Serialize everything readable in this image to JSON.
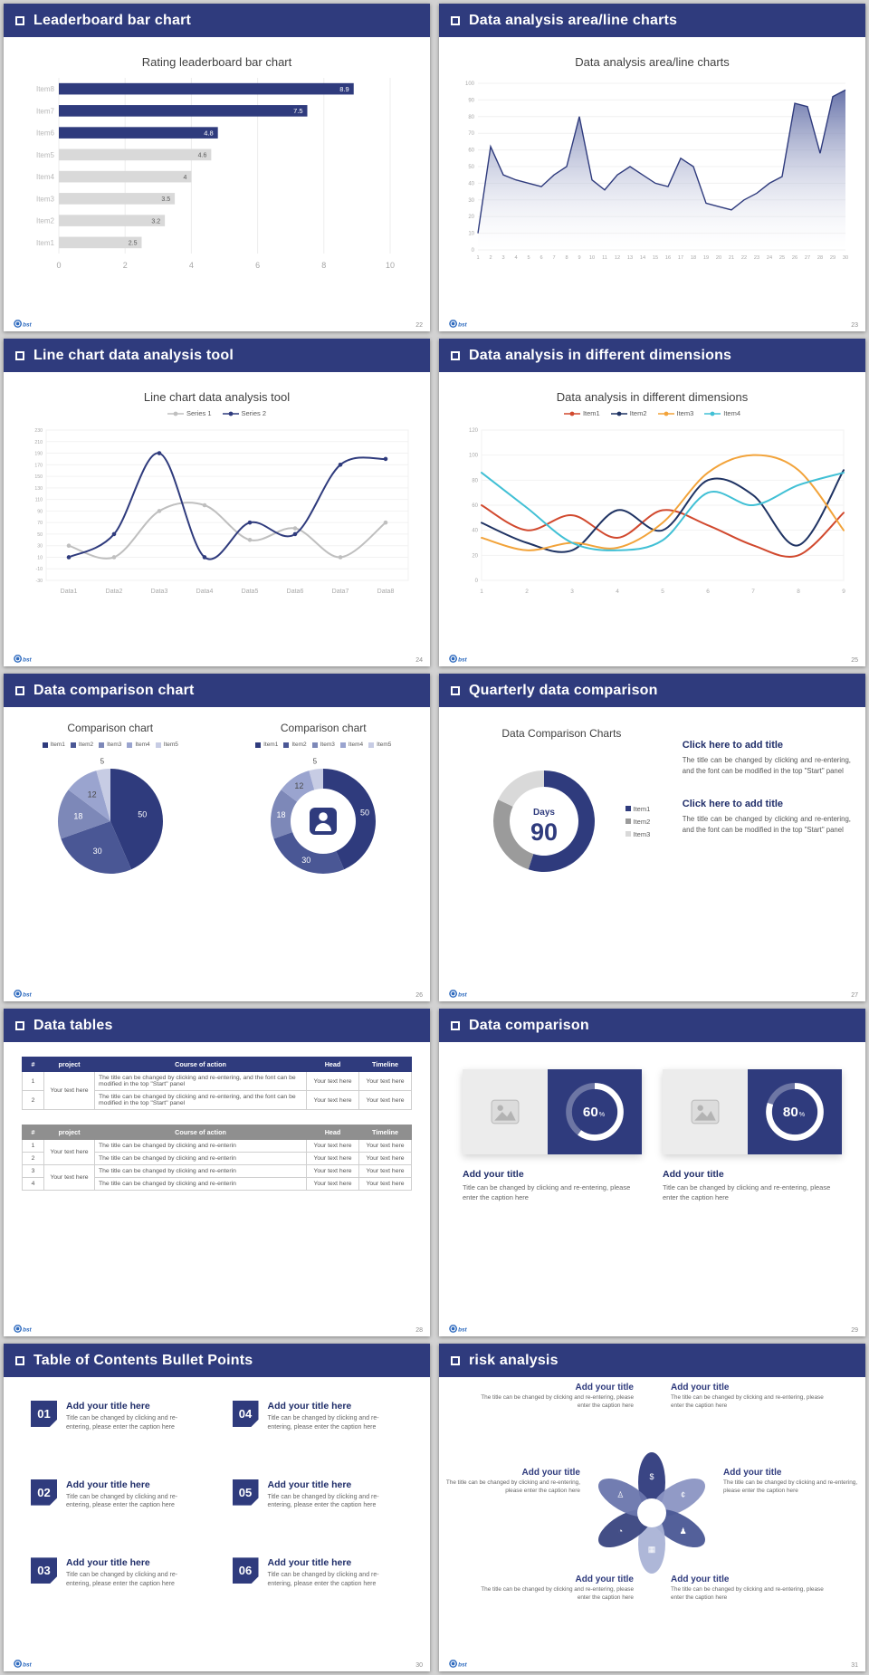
{
  "theme": {
    "page_bg": "#d2d2d2",
    "header_bg": "#2f3b7d",
    "header_text": "#ffffff",
    "navy": "#2f3b7d",
    "gray_bar": "#d9d9d9",
    "logo_text": "bst"
  },
  "slides": [
    {
      "header": "Leaderboard bar chart",
      "page": "22",
      "title": "Rating leaderboard bar chart"
    },
    {
      "header": "Data analysis area/line charts",
      "page": "23",
      "title": "Data analysis area/line charts"
    },
    {
      "header": "Line chart data analysis tool",
      "page": "24",
      "title": "Line chart data analysis tool"
    },
    {
      "header": "Data analysis in different dimensions",
      "page": "25",
      "title": "Data analysis in different dimensions"
    },
    {
      "header": "Data comparison chart",
      "page": "26",
      "titles": [
        "Comparison chart",
        "Comparison chart"
      ]
    },
    {
      "header": "Quarterly data comparison",
      "page": "27",
      "title": "Data Comparison Charts",
      "blocks": [
        {
          "title": "Click here to add title",
          "body": "The title can be changed by clicking and re-entering, and the font can be modified in the top \"Start\" panel"
        },
        {
          "title": "Click here to add title",
          "body": "The title can be changed by clicking and re-entering, and the font can be modified in the top \"Start\" panel"
        }
      ]
    },
    {
      "header": "Data tables",
      "page": "28",
      "tables": [
        {
          "style": "navy",
          "columns": [
            "#",
            "project",
            "Course of action",
            "Head",
            "Timeline"
          ],
          "groups": [
            {
              "project": "Your text here",
              "rows": [
                {
                  "num": "1",
                  "course": "The title can be changed by clicking and re-entering, and the font can be modified in the top \"Start\" panel",
                  "head": "Your text here",
                  "timeline": "Your text here"
                },
                {
                  "num": "2",
                  "course": "The title can be changed by clicking and re-entering, and the font can be modified in the top \"Start\" panel",
                  "head": "Your text here",
                  "timeline": "Your text here"
                }
              ]
            }
          ]
        },
        {
          "style": "gray",
          "columns": [
            "#",
            "project",
            "Course of action",
            "Head",
            "Timeline"
          ],
          "groups": [
            {
              "project": "Your text here",
              "rows": [
                {
                  "num": "1",
                  "course": "The title can be changed by clicking and re-enterin",
                  "head": "Your text here",
                  "timeline": "Your text here"
                },
                {
                  "num": "2",
                  "course": "The title can be changed by clicking and re-enterin",
                  "head": "Your text here",
                  "timeline": "Your text here"
                }
              ]
            },
            {
              "project": "Your text here",
              "rows": [
                {
                  "num": "3",
                  "course": "The title can be changed by clicking and re-enterin",
                  "head": "Your text here",
                  "timeline": "Your text here"
                },
                {
                  "num": "4",
                  "course": "The title can be changed by clicking and re-enterin",
                  "head": "Your text here",
                  "timeline": "Your text here"
                }
              ]
            }
          ]
        }
      ]
    },
    {
      "header": "Data comparison",
      "page": "29",
      "cards": [
        {
          "percent": 60,
          "title": "Add your title",
          "caption": "Title can be changed by clicking and re-entering, please enter the caption here"
        },
        {
          "percent": 80,
          "title": "Add your title",
          "caption": "Title can be changed by clicking and re-entering, please enter the caption here"
        }
      ]
    },
    {
      "header": "Table of Contents Bullet Points",
      "page": "30",
      "items": [
        {
          "num": "01",
          "title": "Add your title here",
          "caption": "Title can be changed by clicking and re-entering, please enter the caption here"
        },
        {
          "num": "02",
          "title": "Add your title here",
          "caption": "Title can be changed by clicking and re-entering, please enter the caption here"
        },
        {
          "num": "03",
          "title": "Add your title here",
          "caption": "Title can be changed by clicking and re-entering, please enter the caption here"
        },
        {
          "num": "04",
          "title": "Add your title here",
          "caption": "Title can be changed by clicking and re-entering, please enter the caption here"
        },
        {
          "num": "05",
          "title": "Add your title here",
          "caption": "Title can be changed by clicking and re-entering, please enter the caption here"
        },
        {
          "num": "06",
          "title": "Add your title here",
          "caption": "Title can be changed by clicking and re-entering, please enter the caption here"
        }
      ]
    },
    {
      "header": "risk analysis",
      "page": "31",
      "items": [
        {
          "title": "Add your title",
          "caption": "The title can be changed by clicking and re-entering, please enter the caption here"
        },
        {
          "title": "Add your title",
          "caption": "The title can be changed by clicking and re-entering, please enter the caption here"
        },
        {
          "title": "Add your title",
          "caption": "The title can be changed by clicking and re-entering, please enter the caption here"
        },
        {
          "title": "Add your title",
          "caption": "The title can be changed by clicking and re-entering, please enter the caption here"
        },
        {
          "title": "Add your title",
          "caption": "The title can be changed by clicking and re-entering, please enter the caption here"
        },
        {
          "title": "Add your title",
          "caption": "The title can be changed by clicking and re-entering, please enter the caption here"
        }
      ],
      "icons": [
        {
          "name": "money-bag-icon",
          "glyph": "$"
        },
        {
          "name": "coins-icon",
          "glyph": "¢"
        },
        {
          "name": "people-icon",
          "glyph": "♟"
        },
        {
          "name": "building-icon",
          "glyph": "▦"
        },
        {
          "name": "chart-pie-icon",
          "glyph": "◔"
        },
        {
          "name": "user-icon",
          "glyph": "♙"
        }
      ],
      "petal_colors": [
        "#2f3b7d",
        "#8b95c3",
        "#4a5795",
        "#aab3d6",
        "#39447f",
        "#6a76ad"
      ]
    }
  ],
  "chart_data": [
    {
      "type": "bar",
      "orientation": "horizontal",
      "title": "Rating leaderboard bar chart",
      "categories": [
        "Item1",
        "Item2",
        "Item3",
        "Item4",
        "Item5",
        "Item6",
        "Item7",
        "Item8"
      ],
      "values": [
        2.5,
        3.2,
        3.5,
        4,
        4.6,
        4.8,
        7.5,
        8.9
      ],
      "xlim": [
        0,
        10
      ],
      "xticks": [
        0,
        2,
        4,
        6,
        8,
        10
      ],
      "bar_colors": [
        "#d9d9d9",
        "#d9d9d9",
        "#d9d9d9",
        "#d9d9d9",
        "#d9d9d9",
        "#2f3b7d",
        "#2f3b7d",
        "#2f3b7d"
      ],
      "highlight_color": "#2f3b7d"
    },
    {
      "type": "area",
      "title": "Data analysis area/line charts",
      "x": [
        1,
        2,
        3,
        4,
        5,
        6,
        7,
        8,
        9,
        10,
        11,
        12,
        13,
        14,
        15,
        16,
        17,
        18,
        19,
        20,
        21,
        22,
        23,
        24,
        25,
        26,
        27,
        28,
        29,
        30
      ],
      "values": [
        10,
        62,
        45,
        42,
        40,
        38,
        45,
        50,
        80,
        42,
        36,
        45,
        50,
        45,
        40,
        38,
        55,
        50,
        28,
        26,
        24,
        30,
        34,
        40,
        44,
        88,
        86,
        58,
        92,
        96
      ],
      "ylim": [
        0,
        100
      ],
      "ytick_step": 10,
      "line_color": "#2f3b7d",
      "fill_top": "#5f6ba5"
    },
    {
      "type": "line",
      "title": "Line chart data analysis tool",
      "categories": [
        "Data1",
        "Data2",
        "Data3",
        "Data4",
        "Data5",
        "Data6",
        "Data7",
        "Data8"
      ],
      "ylim": [
        -30,
        230
      ],
      "ytick_step": 20,
      "ytick_font": 5.2,
      "xtick_font": 7,
      "markers": true,
      "stroke": 2,
      "height": 196,
      "series": [
        {
          "name": "Series 1",
          "color": "#bfbfbf",
          "values": [
            30,
            10,
            90,
            100,
            40,
            60,
            10,
            70
          ]
        },
        {
          "name": "Series 2",
          "color": "#2f3b7d",
          "values": [
            10,
            50,
            190,
            10,
            70,
            50,
            170,
            180
          ]
        }
      ]
    },
    {
      "type": "line",
      "title": "Data analysis in different dimensions",
      "x": [
        1,
        2,
        3,
        4,
        5,
        6,
        7,
        8,
        9
      ],
      "ylim": [
        0,
        120
      ],
      "ytick_step": 20,
      "ytick_font": 6,
      "xtick_font": 6.5,
      "markers": false,
      "stroke": 2,
      "height": 196,
      "series": [
        {
          "name": "Item1",
          "color": "#d1492e",
          "values": [
            60,
            40,
            52,
            34,
            56,
            44,
            28,
            20,
            54
          ]
        },
        {
          "name": "Item2",
          "color": "#1f3363",
          "values": [
            46,
            30,
            24,
            56,
            40,
            80,
            68,
            28,
            88
          ]
        },
        {
          "name": "Item3",
          "color": "#f2a33a",
          "values": [
            34,
            24,
            30,
            26,
            46,
            86,
            100,
            88,
            40
          ]
        },
        {
          "name": "Item4",
          "color": "#41c0d5",
          "values": [
            86,
            58,
            30,
            24,
            32,
            70,
            60,
            76,
            86
          ]
        }
      ]
    },
    {
      "type": "pie",
      "title": "Comparison chart",
      "donut": false,
      "labels": [
        "Item1",
        "Item2",
        "Item3",
        "Item4",
        "Item5"
      ],
      "values": [
        50,
        30,
        18,
        12,
        5
      ],
      "colors": [
        "#2f3b7d",
        "#4a5795",
        "#7d88b8",
        "#9aa4cf",
        "#c7cce4"
      ],
      "label_dark_from": 3
    },
    {
      "type": "pie",
      "title": "Comparison chart",
      "donut": true,
      "center_icon": "presenter-person-icon",
      "labels": [
        "Item1",
        "Item2",
        "Item3",
        "Item4",
        "Item5"
      ],
      "values": [
        50,
        30,
        18,
        12,
        5
      ],
      "colors": [
        "#2f3b7d",
        "#4a5795",
        "#7d88b8",
        "#9aa4cf",
        "#c7cce4"
      ],
      "label_dark_from": 3
    },
    {
      "type": "donut-gauge",
      "title": "Data Comparison Charts",
      "center_label": "Days",
      "center_value": "90",
      "labels": [
        "Item1",
        "Item2",
        "Item3"
      ],
      "values": [
        55,
        27,
        18
      ],
      "colors": [
        "#2f3b7d",
        "#9b9b9b",
        "#d9d9d9"
      ]
    },
    {
      "type": "donut-percent",
      "title": "Data comparison",
      "values": [
        60,
        80
      ],
      "arc_color": "#ffffff",
      "track_color": "rgba(255,255,255,0.3)",
      "bg": "#2f3b7d"
    }
  ]
}
